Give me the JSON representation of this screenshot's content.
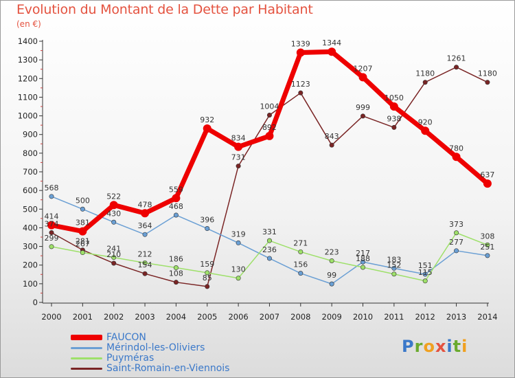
{
  "title": "Evolution du Montant de la Dette par Habitant",
  "subtitle": "(en €)",
  "brand": "Proxiti",
  "chart_data": {
    "type": "line",
    "x": [
      "2000",
      "2001",
      "2002",
      "2003",
      "2004",
      "2005",
      "2006",
      "2007",
      "2008",
      "2009",
      "2010",
      "2011",
      "2012",
      "2013",
      "2014"
    ],
    "ylim": [
      0,
      1400
    ],
    "yticks": [
      0,
      100,
      200,
      300,
      400,
      500,
      600,
      700,
      800,
      900,
      1000,
      1100,
      1200,
      1300,
      1400
    ],
    "grid": false,
    "legend_position": "bottom-left",
    "series": [
      {
        "name": "FAUCON",
        "color": "#ee0000",
        "width": 7,
        "values": [
          414,
          381,
          522,
          478,
          559,
          932,
          834,
          892,
          1339,
          1344,
          1207,
          1050,
          920,
          780,
          637
        ],
        "labels": [
          "414",
          "381",
          "522",
          "478",
          "559",
          "932",
          "834",
          "892",
          "1339",
          "1344",
          "1207",
          "1050",
          "920",
          "780",
          "637"
        ]
      },
      {
        "name": "Mérindol-les-Oliviers",
        "color": "#6a9fd4",
        "width": 1.5,
        "values": [
          568,
          500,
          430,
          364,
          468,
          396,
          319,
          236,
          156,
          99,
          217,
          183,
          151,
          277,
          251
        ],
        "labels": [
          "568",
          "500",
          "430",
          "364",
          "468",
          "396",
          "319",
          "236",
          "156",
          "99",
          "217",
          "183",
          "151",
          "277",
          "251"
        ]
      },
      {
        "name": "Puyméras",
        "color": "#9ee06a",
        "width": 1.5,
        "values": [
          299,
          267,
          241,
          212,
          186,
          159,
          130,
          331,
          271,
          223,
          188,
          152,
          115,
          373,
          308
        ],
        "labels": [
          "299",
          "267",
          "241",
          "212",
          "186",
          "159",
          "130",
          "331",
          "271",
          "223",
          "188",
          "152",
          "115",
          "373",
          "308"
        ]
      },
      {
        "name": "Saint-Romain-en-Viennois",
        "color": "#7a2525",
        "width": 1.5,
        "values": [
          374,
          281,
          210,
          154,
          108,
          85,
          731,
          1004,
          1123,
          843,
          999,
          938,
          1180,
          1261,
          1180
        ],
        "labels": [
          "374",
          "281",
          "210",
          "154",
          "108",
          "85",
          "731",
          "1004",
          "1123",
          "843",
          "999",
          "938",
          "1180",
          "1261",
          "1180"
        ]
      }
    ]
  }
}
